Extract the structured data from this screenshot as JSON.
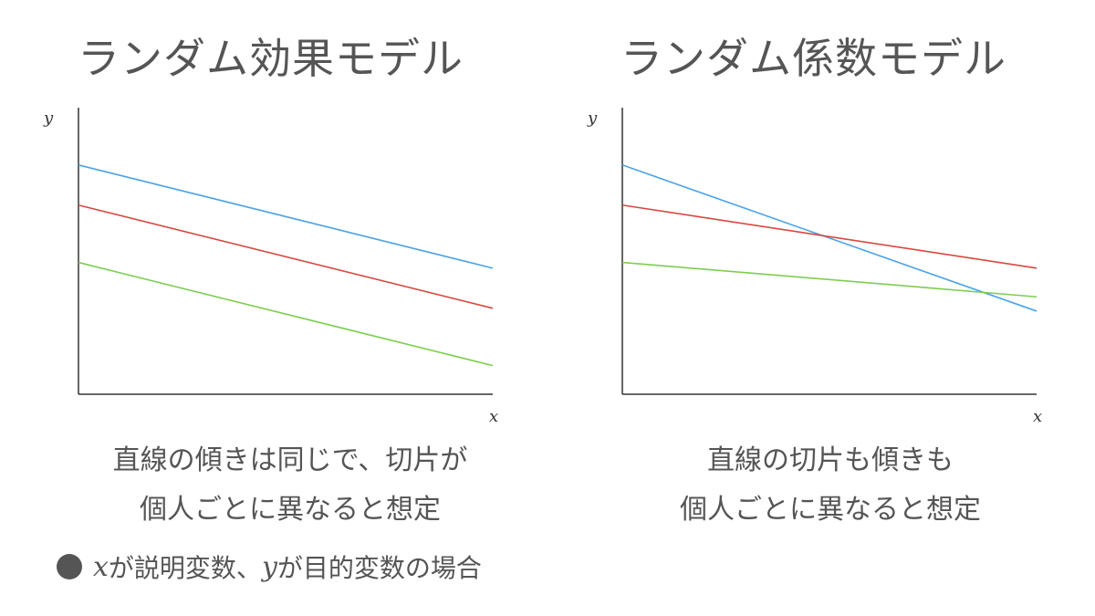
{
  "panels": [
    {
      "title": "ランダム効果モデル",
      "caption_lines": [
        "直線の傾きは同じで、切片が",
        "個人ごとに異なると想定"
      ]
    },
    {
      "title": "ランダム係数モデル",
      "caption_lines": [
        "直線の切片も傾きも",
        "個人ごとに異なると想定"
      ]
    }
  ],
  "chart_data": [
    {
      "type": "line",
      "xlabel": "x",
      "ylabel": "y",
      "xlim": [
        0,
        1
      ],
      "ylim": [
        0,
        1
      ],
      "series": [
        {
          "color": "#4da3e8",
          "x": [
            0,
            1
          ],
          "values": [
            0.8,
            0.44
          ]
        },
        {
          "color": "#d9473f",
          "x": [
            0,
            1
          ],
          "values": [
            0.66,
            0.3
          ]
        },
        {
          "color": "#7ccf4f",
          "x": [
            0,
            1
          ],
          "values": [
            0.46,
            0.1
          ]
        }
      ]
    },
    {
      "type": "line",
      "xlabel": "x",
      "ylabel": "y",
      "xlim": [
        0,
        1
      ],
      "ylim": [
        0,
        1
      ],
      "series": [
        {
          "color": "#4da3e8",
          "x": [
            0,
            1
          ],
          "values": [
            0.8,
            0.29
          ]
        },
        {
          "color": "#d9473f",
          "x": [
            0,
            1
          ],
          "values": [
            0.66,
            0.44
          ]
        },
        {
          "color": "#7ccf4f",
          "x": [
            0,
            1
          ],
          "values": [
            0.46,
            0.34
          ]
        }
      ]
    }
  ],
  "note": {
    "var_x": "x",
    "text_1": "が説明変数、",
    "var_y": "y",
    "text_2": "が目的変数の場合"
  },
  "colors": {
    "text": "#555555",
    "axis": "#333333"
  }
}
